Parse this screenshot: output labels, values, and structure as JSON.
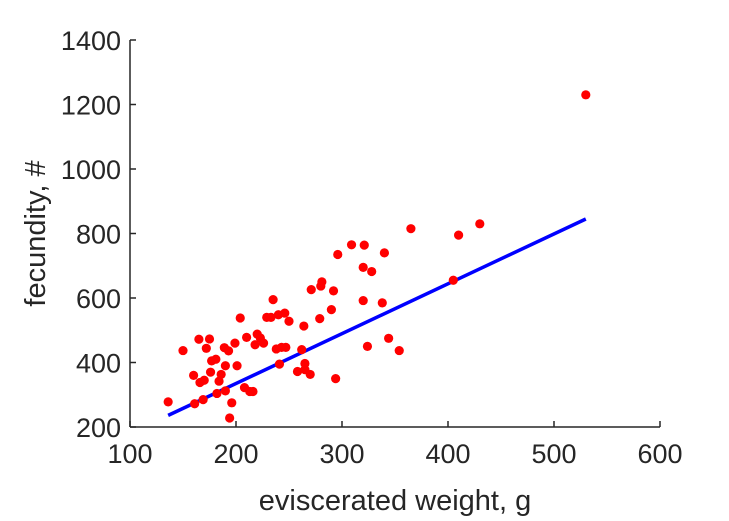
{
  "chart_data": {
    "type": "scatter",
    "xlabel": "eviscerated weight, g",
    "ylabel": "fecundity, #",
    "xlim": [
      100,
      600
    ],
    "ylim": [
      200,
      1400
    ],
    "xticks": [
      100,
      200,
      300,
      400,
      500,
      600
    ],
    "yticks": [
      200,
      400,
      600,
      800,
      1000,
      1200,
      1400
    ],
    "grid": false,
    "legend": "none",
    "colors": {
      "points": "#ff0000",
      "fit_line": "#0000ff",
      "axis": "#262626"
    },
    "series": [
      {
        "type": "scatter",
        "points": [
          [
            136,
            278
          ],
          [
            150,
            437
          ],
          [
            160,
            360
          ],
          [
            161,
            272
          ],
          [
            165,
            472
          ],
          [
            166,
            338
          ],
          [
            169,
            285
          ],
          [
            170,
            345
          ],
          [
            172,
            444
          ],
          [
            175,
            473
          ],
          [
            176,
            370
          ],
          [
            177,
            405
          ],
          [
            181,
            410
          ],
          [
            182,
            304
          ],
          [
            184,
            342
          ],
          [
            186,
            363
          ],
          [
            189,
            446
          ],
          [
            190,
            312
          ],
          [
            190,
            390
          ],
          [
            193,
            436
          ],
          [
            194,
            228
          ],
          [
            196,
            275
          ],
          [
            199,
            460
          ],
          [
            201,
            390
          ],
          [
            204,
            538
          ],
          [
            208,
            322
          ],
          [
            210,
            478
          ],
          [
            213,
            310
          ],
          [
            216,
            310
          ],
          [
            218,
            455
          ],
          [
            220,
            488
          ],
          [
            223,
            476
          ],
          [
            226,
            460
          ],
          [
            229,
            540
          ],
          [
            233,
            540
          ],
          [
            235,
            595
          ],
          [
            238,
            442
          ],
          [
            240,
            548
          ],
          [
            241,
            395
          ],
          [
            243,
            447
          ],
          [
            246,
            553
          ],
          [
            247,
            447
          ],
          [
            250,
            528
          ],
          [
            258,
            372
          ],
          [
            262,
            440
          ],
          [
            264,
            513
          ],
          [
            265,
            397
          ],
          [
            265,
            378
          ],
          [
            270,
            363
          ],
          [
            271,
            626
          ],
          [
            279,
            536
          ],
          [
            280,
            637
          ],
          [
            281,
            650
          ],
          [
            290,
            564
          ],
          [
            292,
            622
          ],
          [
            294,
            350
          ],
          [
            296,
            735
          ],
          [
            309,
            765
          ],
          [
            320,
            592
          ],
          [
            320,
            695
          ],
          [
            321,
            764
          ],
          [
            324,
            450
          ],
          [
            328,
            682
          ],
          [
            338,
            585
          ],
          [
            340,
            740
          ],
          [
            344,
            475
          ],
          [
            354,
            437
          ],
          [
            365,
            815
          ],
          [
            405,
            655
          ],
          [
            410,
            795
          ],
          [
            430,
            830
          ],
          [
            530,
            1230
          ]
        ]
      },
      {
        "type": "line",
        "points": [
          [
            136,
            236
          ],
          [
            530,
            845
          ]
        ]
      }
    ]
  }
}
